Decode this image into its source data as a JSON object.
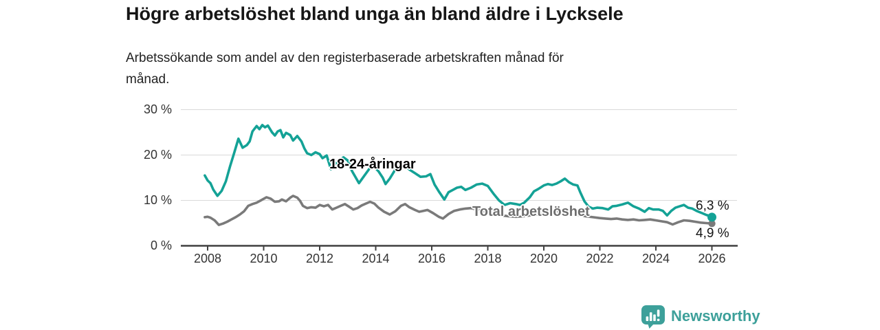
{
  "header": {
    "title": "Högre arbetslöshet bland unga än bland äldre i Lycksele",
    "subtitle": "Arbetssökande som andel av den registerbaserade arbetskraften månad för månad."
  },
  "chart_data": {
    "type": "line",
    "title": "Högre arbetslöshet bland unga än bland äldre i Lycksele",
    "xlabel": "",
    "ylabel": "",
    "grid": "horizontal",
    "legend_position": "inline-labels",
    "xlim": [
      2007.5,
      2026.9
    ],
    "ylim": [
      0,
      30
    ],
    "x_ticks": [
      2008,
      2010,
      2012,
      2014,
      2016,
      2018,
      2020,
      2022,
      2024,
      2026
    ],
    "y_ticks": [
      {
        "value": 0,
        "label": "0 %"
      },
      {
        "value": 10,
        "label": "10 %"
      },
      {
        "value": 20,
        "label": "20 %"
      },
      {
        "value": 30,
        "label": "30 %"
      }
    ],
    "colors": {
      "accent_teal": "#14a296",
      "neutral_gray": "#7a7a7a",
      "gridline": "#d9d9d9",
      "axis": "#3f3f3f"
    },
    "series": [
      {
        "name": "18-24-åringar",
        "color": "#14a296",
        "end_label": "6,3 %",
        "end_value": 6.3,
        "points": [
          [
            2007.9,
            15.5
          ],
          [
            2008.0,
            14.4
          ],
          [
            2008.1,
            13.8
          ],
          [
            2008.2,
            12.4
          ],
          [
            2008.35,
            11.0
          ],
          [
            2008.5,
            12.1
          ],
          [
            2008.65,
            14.2
          ],
          [
            2008.8,
            17.5
          ],
          [
            2008.95,
            20.5
          ],
          [
            2009.1,
            23.6
          ],
          [
            2009.25,
            21.6
          ],
          [
            2009.4,
            22.2
          ],
          [
            2009.5,
            23.0
          ],
          [
            2009.6,
            25.2
          ],
          [
            2009.75,
            26.4
          ],
          [
            2009.85,
            25.7
          ],
          [
            2009.95,
            26.6
          ],
          [
            2010.05,
            26.1
          ],
          [
            2010.15,
            26.5
          ],
          [
            2010.3,
            25.0
          ],
          [
            2010.4,
            24.3
          ],
          [
            2010.5,
            25.2
          ],
          [
            2010.6,
            25.5
          ],
          [
            2010.7,
            23.9
          ],
          [
            2010.8,
            24.9
          ],
          [
            2010.95,
            24.4
          ],
          [
            2011.05,
            23.2
          ],
          [
            2011.2,
            24.2
          ],
          [
            2011.35,
            23.0
          ],
          [
            2011.45,
            21.5
          ],
          [
            2011.55,
            20.4
          ],
          [
            2011.7,
            20.0
          ],
          [
            2011.85,
            20.6
          ],
          [
            2012.0,
            20.2
          ],
          [
            2012.1,
            19.3
          ],
          [
            2012.25,
            19.9
          ],
          [
            2012.4,
            16.9
          ],
          [
            2012.55,
            18.0
          ],
          [
            2012.7,
            18.8
          ],
          [
            2012.85,
            19.5
          ],
          [
            2013.0,
            18.8
          ],
          [
            2013.15,
            16.5
          ],
          [
            2013.4,
            13.8
          ],
          [
            2013.6,
            15.5
          ],
          [
            2013.8,
            17.2
          ],
          [
            2013.95,
            17.4
          ],
          [
            2014.1,
            16.4
          ],
          [
            2014.25,
            15.0
          ],
          [
            2014.35,
            13.6
          ],
          [
            2014.5,
            14.8
          ],
          [
            2014.7,
            16.8
          ],
          [
            2014.9,
            17.6
          ],
          [
            2015.05,
            17.7
          ],
          [
            2015.2,
            16.8
          ],
          [
            2015.4,
            16.0
          ],
          [
            2015.6,
            15.2
          ],
          [
            2015.8,
            15.3
          ],
          [
            2015.95,
            15.8
          ],
          [
            2016.1,
            13.5
          ],
          [
            2016.25,
            12.0
          ],
          [
            2016.45,
            10.2
          ],
          [
            2016.6,
            11.8
          ],
          [
            2016.75,
            12.3
          ],
          [
            2016.9,
            12.8
          ],
          [
            2017.05,
            13.0
          ],
          [
            2017.2,
            12.3
          ],
          [
            2017.4,
            12.8
          ],
          [
            2017.6,
            13.5
          ],
          [
            2017.8,
            13.7
          ],
          [
            2018.0,
            13.2
          ],
          [
            2018.2,
            11.5
          ],
          [
            2018.4,
            10.0
          ],
          [
            2018.6,
            9.0
          ],
          [
            2018.8,
            9.4
          ],
          [
            2019.0,
            9.2
          ],
          [
            2019.15,
            9.0
          ],
          [
            2019.3,
            9.5
          ],
          [
            2019.5,
            10.7
          ],
          [
            2019.65,
            12.0
          ],
          [
            2019.8,
            12.5
          ],
          [
            2020.0,
            13.3
          ],
          [
            2020.15,
            13.6
          ],
          [
            2020.3,
            13.4
          ],
          [
            2020.45,
            13.7
          ],
          [
            2020.6,
            14.2
          ],
          [
            2020.75,
            14.8
          ],
          [
            2020.9,
            14.0
          ],
          [
            2021.05,
            13.5
          ],
          [
            2021.2,
            13.3
          ],
          [
            2021.3,
            11.8
          ],
          [
            2021.45,
            9.8
          ],
          [
            2021.6,
            8.6
          ],
          [
            2021.75,
            8.2
          ],
          [
            2021.9,
            8.4
          ],
          [
            2022.1,
            8.3
          ],
          [
            2022.3,
            8.0
          ],
          [
            2022.45,
            8.7
          ],
          [
            2022.6,
            8.8
          ],
          [
            2022.8,
            9.1
          ],
          [
            2023.0,
            9.5
          ],
          [
            2023.2,
            8.7
          ],
          [
            2023.4,
            8.2
          ],
          [
            2023.6,
            7.5
          ],
          [
            2023.75,
            8.3
          ],
          [
            2023.9,
            8.0
          ],
          [
            2024.1,
            8.0
          ],
          [
            2024.25,
            7.7
          ],
          [
            2024.4,
            6.7
          ],
          [
            2024.55,
            7.7
          ],
          [
            2024.7,
            8.4
          ],
          [
            2024.85,
            8.7
          ],
          [
            2025.0,
            9.0
          ],
          [
            2025.15,
            8.4
          ],
          [
            2025.3,
            8.2
          ],
          [
            2025.45,
            7.7
          ],
          [
            2025.65,
            7.2
          ],
          [
            2025.8,
            6.8
          ],
          [
            2025.9,
            6.6
          ],
          [
            2026.0,
            6.3
          ]
        ]
      },
      {
        "name": "Total arbetslöshet",
        "color": "#7a7a7a",
        "end_label": "4,9 %",
        "end_value": 4.9,
        "points": [
          [
            2007.9,
            6.3
          ],
          [
            2008.0,
            6.4
          ],
          [
            2008.1,
            6.2
          ],
          [
            2008.25,
            5.6
          ],
          [
            2008.4,
            4.6
          ],
          [
            2008.55,
            4.9
          ],
          [
            2008.7,
            5.3
          ],
          [
            2008.85,
            5.8
          ],
          [
            2009.0,
            6.3
          ],
          [
            2009.15,
            6.9
          ],
          [
            2009.3,
            7.6
          ],
          [
            2009.45,
            8.8
          ],
          [
            2009.6,
            9.2
          ],
          [
            2009.75,
            9.5
          ],
          [
            2009.9,
            10.0
          ],
          [
            2010.1,
            10.7
          ],
          [
            2010.25,
            10.4
          ],
          [
            2010.4,
            9.7
          ],
          [
            2010.55,
            9.8
          ],
          [
            2010.65,
            10.2
          ],
          [
            2010.8,
            9.8
          ],
          [
            2010.95,
            10.6
          ],
          [
            2011.05,
            11.0
          ],
          [
            2011.2,
            10.6
          ],
          [
            2011.3,
            9.9
          ],
          [
            2011.4,
            8.8
          ],
          [
            2011.55,
            8.3
          ],
          [
            2011.7,
            8.5
          ],
          [
            2011.85,
            8.4
          ],
          [
            2012.0,
            9.0
          ],
          [
            2012.15,
            8.7
          ],
          [
            2012.3,
            9.0
          ],
          [
            2012.45,
            8.0
          ],
          [
            2012.6,
            8.4
          ],
          [
            2012.75,
            8.8
          ],
          [
            2012.9,
            9.2
          ],
          [
            2013.05,
            8.6
          ],
          [
            2013.2,
            8.0
          ],
          [
            2013.35,
            8.3
          ],
          [
            2013.5,
            8.9
          ],
          [
            2013.65,
            9.3
          ],
          [
            2013.8,
            9.7
          ],
          [
            2013.95,
            9.3
          ],
          [
            2014.1,
            8.4
          ],
          [
            2014.3,
            7.5
          ],
          [
            2014.5,
            6.9
          ],
          [
            2014.7,
            7.6
          ],
          [
            2014.9,
            8.8
          ],
          [
            2015.05,
            9.2
          ],
          [
            2015.2,
            8.5
          ],
          [
            2015.4,
            7.9
          ],
          [
            2015.55,
            7.5
          ],
          [
            2015.7,
            7.7
          ],
          [
            2015.85,
            7.9
          ],
          [
            2016.05,
            7.2
          ],
          [
            2016.25,
            6.4
          ],
          [
            2016.4,
            6.0
          ],
          [
            2016.6,
            7.0
          ],
          [
            2016.8,
            7.7
          ],
          [
            2017.0,
            8.0
          ],
          [
            2017.2,
            8.2
          ],
          [
            2017.4,
            8.3
          ],
          [
            2017.6,
            8.0
          ],
          [
            2017.8,
            7.7
          ],
          [
            2018.0,
            7.4
          ],
          [
            2018.25,
            7.0
          ],
          [
            2018.5,
            6.7
          ],
          [
            2018.75,
            6.5
          ],
          [
            2019.0,
            6.4
          ],
          [
            2019.25,
            6.5
          ],
          [
            2019.5,
            6.7
          ],
          [
            2019.75,
            6.9
          ],
          [
            2020.0,
            7.0
          ],
          [
            2020.25,
            7.4
          ],
          [
            2020.5,
            7.6
          ],
          [
            2020.75,
            7.4
          ],
          [
            2021.0,
            7.1
          ],
          [
            2021.25,
            6.8
          ],
          [
            2021.5,
            6.5
          ],
          [
            2021.75,
            6.3
          ],
          [
            2022.0,
            6.1
          ],
          [
            2022.2,
            6.0
          ],
          [
            2022.4,
            5.9
          ],
          [
            2022.6,
            6.0
          ],
          [
            2022.8,
            5.8
          ],
          [
            2023.0,
            5.7
          ],
          [
            2023.2,
            5.8
          ],
          [
            2023.4,
            5.6
          ],
          [
            2023.6,
            5.7
          ],
          [
            2023.8,
            5.8
          ],
          [
            2024.0,
            5.6
          ],
          [
            2024.2,
            5.4
          ],
          [
            2024.4,
            5.2
          ],
          [
            2024.6,
            4.7
          ],
          [
            2024.8,
            5.2
          ],
          [
            2025.0,
            5.6
          ],
          [
            2025.2,
            5.5
          ],
          [
            2025.4,
            5.3
          ],
          [
            2025.6,
            5.1
          ],
          [
            2025.8,
            5.0
          ],
          [
            2026.0,
            4.9
          ]
        ]
      }
    ]
  },
  "branding": {
    "name": "Newsworthy",
    "icon": "newsworthy-speech-bubble-chart-icon",
    "color": "#3da09a"
  }
}
